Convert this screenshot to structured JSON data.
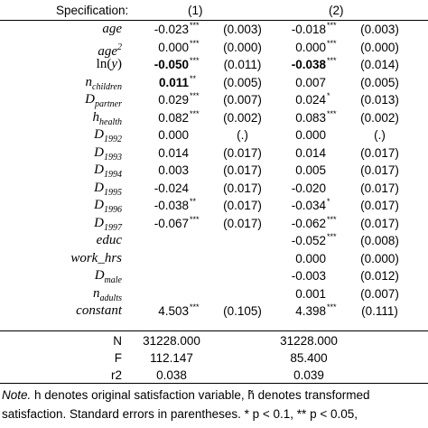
{
  "header": {
    "spec_label": "Specification:",
    "col1": "(1)",
    "col2": "(2)"
  },
  "rows": [
    {
      "var": "age",
      "c1": "-0.023",
      "s1": "***",
      "se1": "(0.003)",
      "c2": "-0.018",
      "s2": "***",
      "se2": "(0.003)"
    },
    {
      "var": "age²",
      "c1": "0.000",
      "s1": "***",
      "se1": "(0.000)",
      "c2": "0.000",
      "s2": "***",
      "se2": "(0.000)"
    },
    {
      "var": "ln(y)",
      "c1": "-0.050",
      "s1": "***",
      "se1": "(0.011)",
      "c2": "-0.038",
      "s2": "***",
      "se2": "(0.014)",
      "bold1": true,
      "bold2": true
    },
    {
      "var": "n_children",
      "c1": "0.011",
      "s1": "**",
      "se1": "(0.005)",
      "c2": "0.007",
      "s2": "",
      "se2": "(0.005)",
      "bold1": true
    },
    {
      "var": "D_partner",
      "c1": "0.029",
      "s1": "***",
      "se1": "(0.007)",
      "c2": "0.024",
      "s2": "*",
      "se2": "(0.013)"
    },
    {
      "var": "h_health",
      "c1": "0.082",
      "s1": "***",
      "se1": "(0.002)",
      "c2": "0.083",
      "s2": "***",
      "se2": "(0.002)"
    },
    {
      "var": "D_1992",
      "c1": "0.000",
      "s1": "",
      "se1": "(.)",
      "c2": "0.000",
      "s2": "",
      "se2": "(.)"
    },
    {
      "var": "D_1993",
      "c1": "0.014",
      "s1": "",
      "se1": "(0.017)",
      "c2": "0.014",
      "s2": "",
      "se2": "(0.017)"
    },
    {
      "var": "D_1994",
      "c1": "0.003",
      "s1": "",
      "se1": "(0.017)",
      "c2": "0.005",
      "s2": "",
      "se2": "(0.017)"
    },
    {
      "var": "D_1995",
      "c1": "-0.024",
      "s1": "",
      "se1": "(0.017)",
      "c2": "-0.020",
      "s2": "",
      "se2": "(0.017)"
    },
    {
      "var": "D_1996",
      "c1": "-0.038",
      "s1": "**",
      "se1": "(0.017)",
      "c2": "-0.034",
      "s2": "*",
      "se2": "(0.017)"
    },
    {
      "var": "D_1997",
      "c1": "-0.067",
      "s1": "***",
      "se1": "(0.017)",
      "c2": "-0.062",
      "s2": "***",
      "se2": "(0.017)"
    },
    {
      "var": "educ",
      "c1": "",
      "s1": "",
      "se1": "",
      "c2": "-0.052",
      "s2": "***",
      "se2": "(0.008)"
    },
    {
      "var": "work_hrs",
      "c1": "",
      "s1": "",
      "se1": "",
      "c2": "0.000",
      "s2": "",
      "se2": "(0.000)"
    },
    {
      "var": "D_male",
      "c1": "",
      "s1": "",
      "se1": "",
      "c2": "-0.003",
      "s2": "",
      "se2": "(0.012)"
    },
    {
      "var": "n_adults",
      "c1": "",
      "s1": "",
      "se1": "",
      "c2": "0.001",
      "s2": "",
      "se2": "(0.007)"
    },
    {
      "var": "constant",
      "c1": "4.503",
      "s1": "***",
      "se1": "(0.105)",
      "c2": "4.398",
      "s2": "***",
      "se2": "(0.111)"
    }
  ],
  "stats": [
    {
      "label": "N",
      "v1": "31228.000",
      "v2": "31228.000"
    },
    {
      "label": "F",
      "v1": "112.147",
      "v2": "85.400"
    },
    {
      "label": "r2",
      "v1": "0.038",
      "v2": "0.039"
    }
  ],
  "note": {
    "label": "Note.",
    "line1": " h denotes original satisfaction variable, h̃ denotes transformed",
    "line2": "satisfaction. Standard errors in parentheses. * p < 0.1, ** p < 0.05,"
  }
}
